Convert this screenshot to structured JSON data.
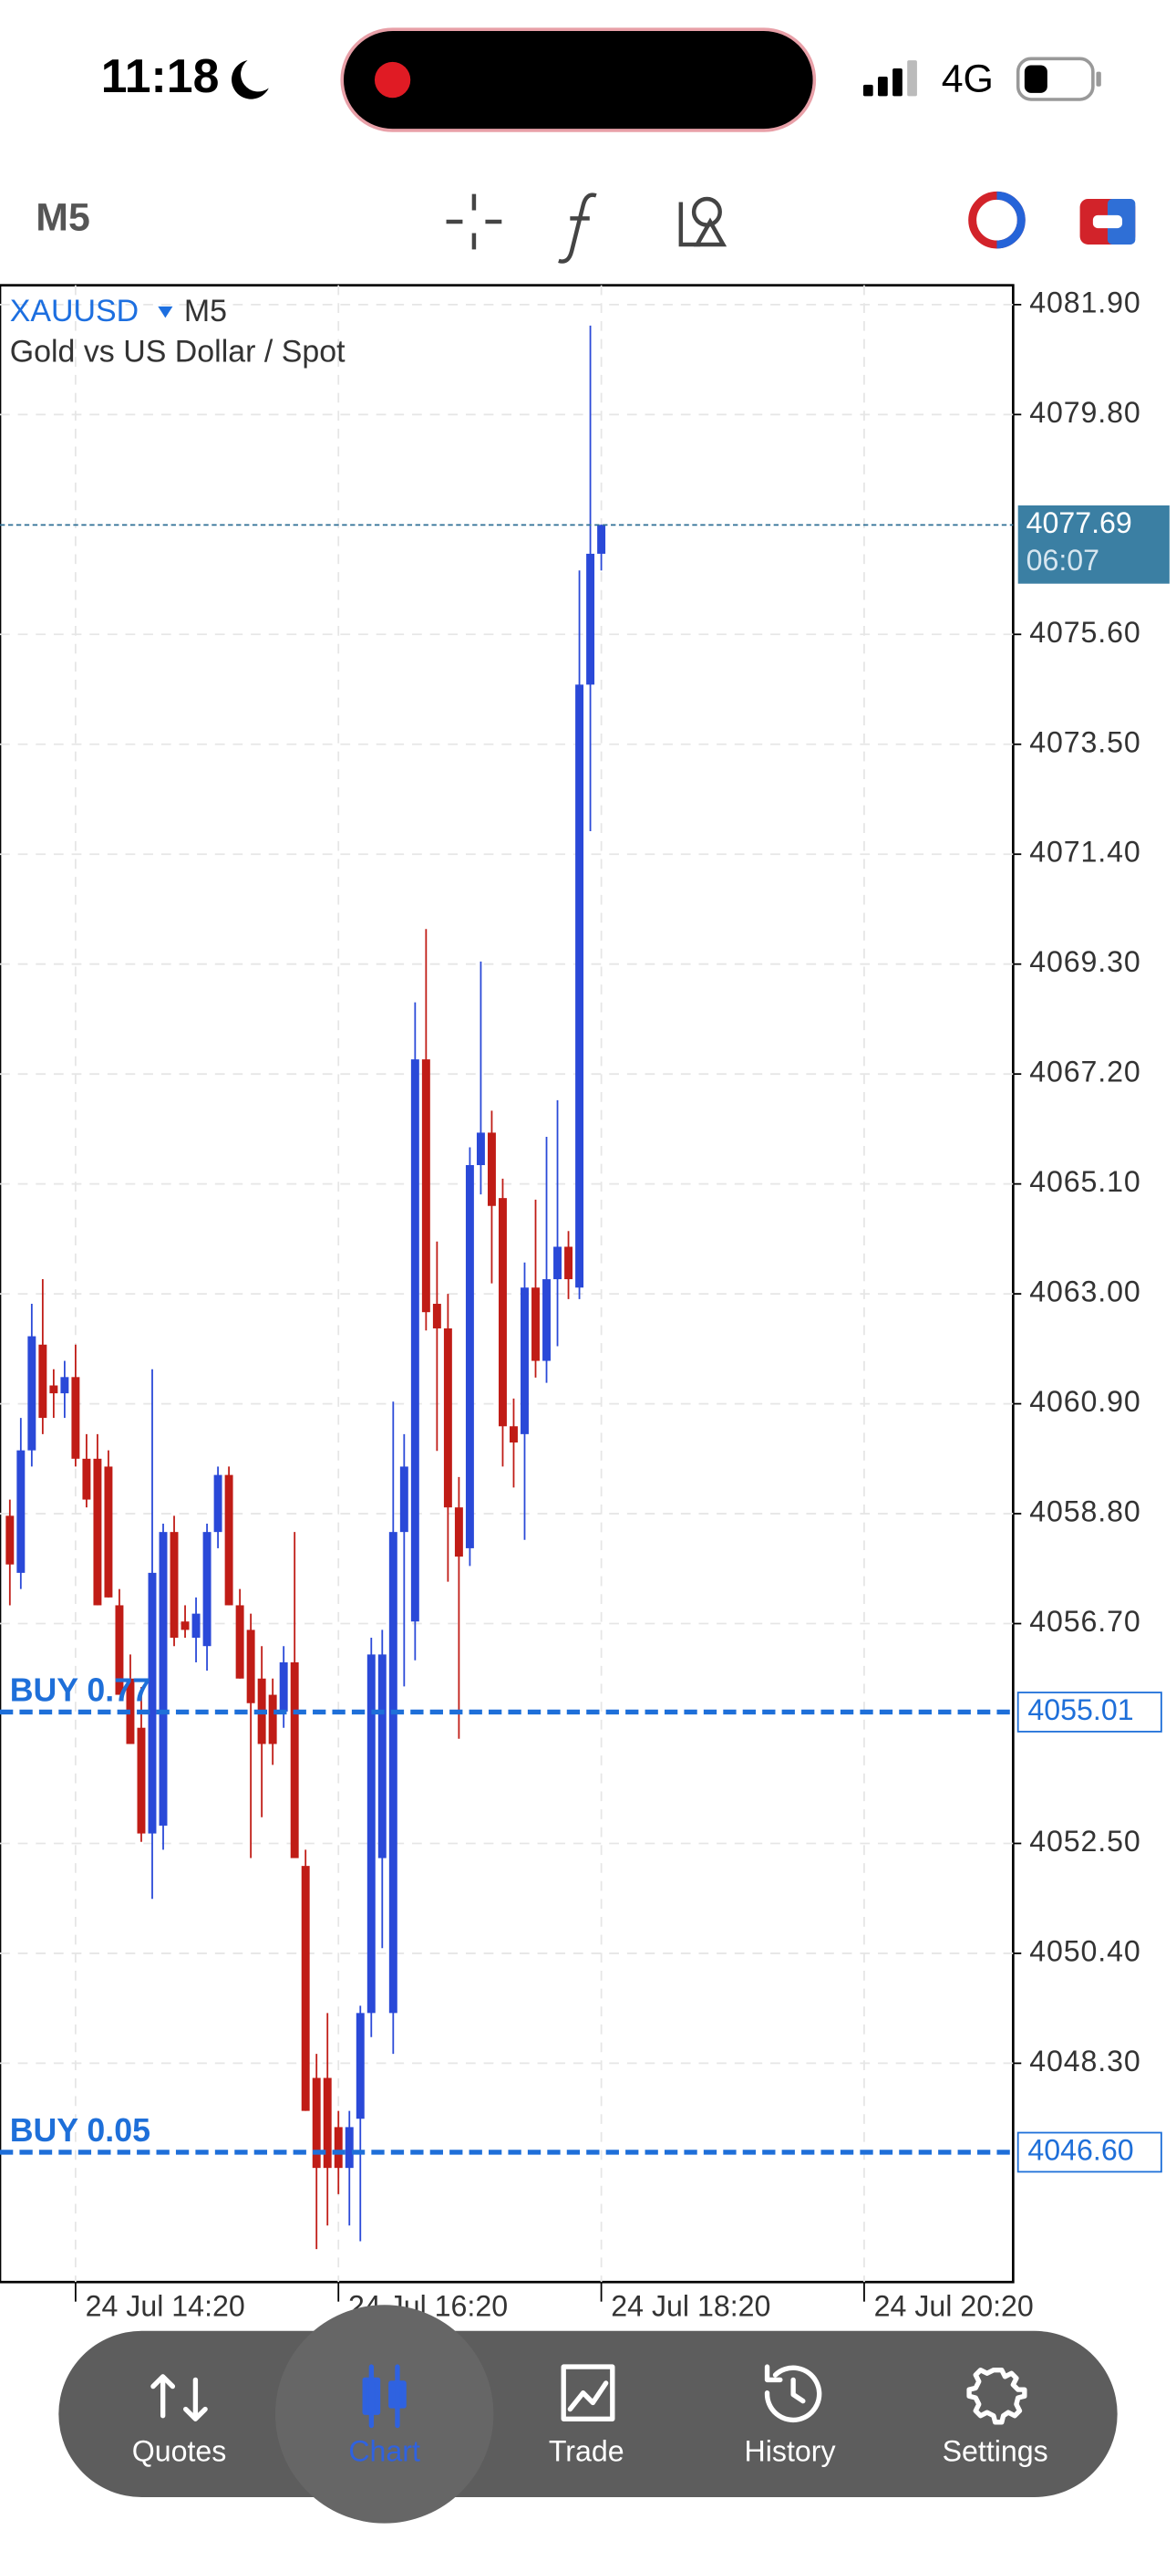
{
  "status_bar": {
    "time": "11:18",
    "network": "4G"
  },
  "toolbar": {
    "timeframe": "M5"
  },
  "chart_data": {
    "type": "candlestick",
    "symbol": "XAUUSD",
    "timeframe": "M5",
    "subtitle": "Gold vs US Dollar / Spot",
    "up_color": "#2a49d8",
    "down_color": "#c01c16",
    "open": [
      4058.76,
      4057.67,
      4060.01,
      4062.03,
      4061.25,
      4061.1,
      4061.41,
      4059.85,
      4059.85,
      4059.7,
      4057.05,
      4055.65,
      4054.71,
      4052.69,
      4052.84,
      4058.45,
      4056.74,
      4056.43,
      4056.27,
      4058.45,
      4059.54,
      4057.05,
      4056.58,
      4055.65,
      4055.34,
      4055.02,
      4055.96,
      4052.07,
      4048.02,
      4048.02,
      4047.08,
      4046.3,
      4047.24,
      4049.26,
      4052.22,
      4049.26,
      4058.45,
      4056.74,
      4067.48,
      4062.81,
      4062.34,
      4058.92,
      4058.14,
      4065.46,
      4066.08,
      4064.83,
      4060.47,
      4060.32,
      4063.12,
      4061.72,
      4063.28,
      4063.9,
      4063.12,
      4074.64,
      4077.14
    ],
    "high": [
      4059.07,
      4060.63,
      4062.81,
      4063.28,
      4061.56,
      4061.72,
      4062.03,
      4060.32,
      4060.32,
      4060.01,
      4057.36,
      4056.11,
      4055.49,
      4061.56,
      4058.61,
      4058.76,
      4057.05,
      4057.2,
      4058.61,
      4059.7,
      4059.7,
      4057.36,
      4056.89,
      4056.27,
      4055.65,
      4056.27,
      4058.45,
      4052.38,
      4048.48,
      4049.26,
      4047.39,
      4047.39,
      4049.4,
      4056.43,
      4056.58,
      4060.94,
      4060.32,
      4068.57,
      4069.97,
      4064.0,
      4063.0,
      4059.5,
      4065.8,
      4069.35,
      4066.5,
      4065.2,
      4061.0,
      4063.6,
      4064.8,
      4066.0,
      4066.7,
      4064.2,
      4076.82,
      4081.5,
      4077.7
    ],
    "low": [
      4057.05,
      4057.36,
      4059.7,
      4060.32,
      4060.63,
      4060.63,
      4059.7,
      4058.92,
      4057.05,
      4057.2,
      4055.34,
      4054.4,
      4052.53,
      4051.44,
      4052.38,
      4056.27,
      4056.43,
      4055.96,
      4055.8,
      4058.14,
      4057.05,
      4055.65,
      4052.22,
      4053.0,
      4054.0,
      4054.71,
      4052.22,
      4047.39,
      4044.75,
      4045.2,
      4045.8,
      4045.2,
      4044.9,
      4048.8,
      4050.5,
      4048.48,
      4055.5,
      4056.0,
      4062.3,
      4060.0,
      4057.5,
      4054.5,
      4057.8,
      4064.9,
      4063.2,
      4059.7,
      4059.3,
      4058.3,
      4061.4,
      4061.3,
      4062.0,
      4062.9,
      4062.9,
      4071.84,
      4076.82
    ],
    "close": [
      4057.83,
      4060.01,
      4062.19,
      4060.63,
      4061.1,
      4061.41,
      4059.85,
      4059.07,
      4057.05,
      4057.2,
      4055.34,
      4054.4,
      4052.69,
      4057.67,
      4058.45,
      4056.43,
      4056.58,
      4056.89,
      4058.45,
      4059.54,
      4057.05,
      4055.65,
      4055.18,
      4054.4,
      4054.4,
      4055.96,
      4052.22,
      4047.39,
      4046.3,
      4046.3,
      4046.3,
      4047.08,
      4049.26,
      4056.11,
      4056.11,
      4058.45,
      4059.7,
      4067.48,
      4062.65,
      4062.34,
      4058.92,
      4057.98,
      4065.46,
      4066.08,
      4064.68,
      4060.47,
      4060.16,
      4063.12,
      4061.72,
      4063.28,
      4063.9,
      4063.28,
      4074.64,
      4077.14,
      4077.69
    ],
    "ylim": [
      4044.12,
      4082.27
    ],
    "yticks": [
      {
        "value": 4081.9,
        "label": "4081.90"
      },
      {
        "value": 4079.8,
        "label": "4079.80"
      },
      {
        "value": 4075.6,
        "label": "4075.60"
      },
      {
        "value": 4073.5,
        "label": "4073.50"
      },
      {
        "value": 4071.4,
        "label": "4071.40"
      },
      {
        "value": 4069.3,
        "label": "4069.30"
      },
      {
        "value": 4067.2,
        "label": "4067.20"
      },
      {
        "value": 4065.1,
        "label": "4065.10"
      },
      {
        "value": 4063,
        "label": "4063.00"
      },
      {
        "value": 4060.9,
        "label": "4060.90"
      },
      {
        "value": 4058.8,
        "label": "4058.80"
      },
      {
        "value": 4056.7,
        "label": "4056.70"
      },
      {
        "value": 4052.5,
        "label": "4052.50"
      },
      {
        "value": 4050.4,
        "label": "4050.40"
      },
      {
        "value": 4048.3,
        "label": "4048.30"
      }
    ],
    "xlim": [
      -0.9,
      91.6
    ],
    "xticks": [
      {
        "value": 6,
        "label": "24 Jul 14:20"
      },
      {
        "value": 30,
        "label": "24 Jul 16:20"
      },
      {
        "value": 54,
        "label": "24 Jul 18:20"
      },
      {
        "value": 78,
        "label": "24 Jul 20:20"
      }
    ],
    "grid": true,
    "current_price": 4077.69,
    "countdown": "06:07",
    "orders": [
      {
        "label": "BUY 0.77",
        "price": 4055.01
      },
      {
        "label": "BUY 0.05",
        "price": {
          "value": 4046.6,
          "label": "4046.60"
        }
      }
    ]
  },
  "nav": {
    "items": [
      "Quotes",
      "Chart",
      "Trade",
      "History",
      "Settings"
    ],
    "active": 1
  }
}
